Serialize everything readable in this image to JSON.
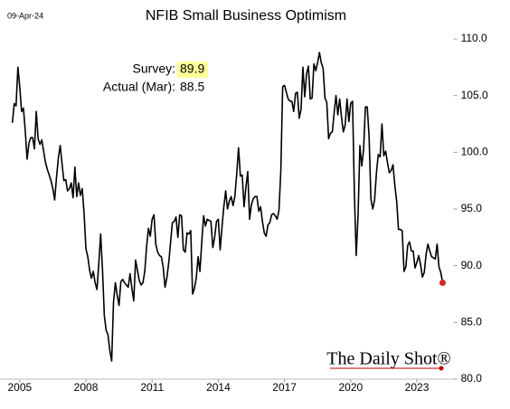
{
  "chart_data": {
    "type": "line",
    "title": "NFIB Small Business Optimism",
    "date": "09-Apr-24",
    "source": "The Daily Shot®",
    "annotations": [
      {
        "label": "Survey:",
        "value": 89.9,
        "highlight": "#ffff99"
      },
      {
        "label": "Actual (Mar):",
        "value": 88.5
      }
    ],
    "xlim": [
      "2004-06",
      "2024-06"
    ],
    "xticks": [
      2005,
      2008,
      2011,
      2014,
      2017,
      2020,
      2023
    ],
    "ylim": [
      80,
      110
    ],
    "yticks": [
      {
        "value": 80,
        "label": "80.0"
      },
      {
        "value": 85,
        "label": "85.0"
      },
      {
        "value": 90,
        "label": "90.0"
      },
      {
        "value": 95,
        "label": "95.0"
      },
      {
        "value": 100,
        "label": "100.0"
      },
      {
        "value": 105,
        "label": "105.0"
      },
      {
        "value": 110,
        "label": "110.0"
      }
    ],
    "grid": false,
    "last_marker_color": "#d62728",
    "x": [
      "2004-09",
      "2004-10",
      "2004-11",
      "2004-12",
      "2005-01",
      "2005-02",
      "2005-03",
      "2005-04",
      "2005-05",
      "2005-06",
      "2005-07",
      "2005-08",
      "2005-09",
      "2005-10",
      "2005-11",
      "2005-12",
      "2006-01",
      "2006-02",
      "2006-03",
      "2006-04",
      "2006-05",
      "2006-06",
      "2006-07",
      "2006-08",
      "2006-09",
      "2006-10",
      "2006-11",
      "2006-12",
      "2007-01",
      "2007-02",
      "2007-03",
      "2007-04",
      "2007-05",
      "2007-06",
      "2007-07",
      "2007-08",
      "2007-09",
      "2007-10",
      "2007-11",
      "2007-12",
      "2008-01",
      "2008-02",
      "2008-03",
      "2008-04",
      "2008-05",
      "2008-06",
      "2008-07",
      "2008-08",
      "2008-09",
      "2008-10",
      "2008-11",
      "2008-12",
      "2009-01",
      "2009-02",
      "2009-03",
      "2009-04",
      "2009-05",
      "2009-06",
      "2009-07",
      "2009-08",
      "2009-09",
      "2009-10",
      "2009-11",
      "2009-12",
      "2010-01",
      "2010-02",
      "2010-03",
      "2010-04",
      "2010-05",
      "2010-06",
      "2010-07",
      "2010-08",
      "2010-09",
      "2010-10",
      "2010-11",
      "2010-12",
      "2011-01",
      "2011-02",
      "2011-03",
      "2011-04",
      "2011-05",
      "2011-06",
      "2011-07",
      "2011-08",
      "2011-09",
      "2011-10",
      "2011-11",
      "2011-12",
      "2012-01",
      "2012-02",
      "2012-03",
      "2012-04",
      "2012-05",
      "2012-06",
      "2012-07",
      "2012-08",
      "2012-09",
      "2012-10",
      "2012-11",
      "2012-12",
      "2013-01",
      "2013-02",
      "2013-03",
      "2013-04",
      "2013-05",
      "2013-06",
      "2013-07",
      "2013-08",
      "2013-09",
      "2013-10",
      "2013-11",
      "2013-12",
      "2014-01",
      "2014-02",
      "2014-03",
      "2014-04",
      "2014-05",
      "2014-06",
      "2014-07",
      "2014-08",
      "2014-09",
      "2014-10",
      "2014-11",
      "2014-12",
      "2015-01",
      "2015-02",
      "2015-03",
      "2015-04",
      "2015-05",
      "2015-06",
      "2015-07",
      "2015-08",
      "2015-09",
      "2015-10",
      "2015-11",
      "2015-12",
      "2016-01",
      "2016-02",
      "2016-03",
      "2016-04",
      "2016-05",
      "2016-06",
      "2016-07",
      "2016-08",
      "2016-09",
      "2016-10",
      "2016-11",
      "2016-12",
      "2017-01",
      "2017-02",
      "2017-03",
      "2017-04",
      "2017-05",
      "2017-06",
      "2017-07",
      "2017-08",
      "2017-09",
      "2017-10",
      "2017-11",
      "2017-12",
      "2018-01",
      "2018-02",
      "2018-03",
      "2018-04",
      "2018-05",
      "2018-06",
      "2018-07",
      "2018-08",
      "2018-09",
      "2018-10",
      "2018-11",
      "2018-12",
      "2019-01",
      "2019-02",
      "2019-03",
      "2019-04",
      "2019-05",
      "2019-06",
      "2019-07",
      "2019-08",
      "2019-09",
      "2019-10",
      "2019-11",
      "2019-12",
      "2020-01",
      "2020-02",
      "2020-03",
      "2020-04",
      "2020-05",
      "2020-06",
      "2020-07",
      "2020-08",
      "2020-09",
      "2020-10",
      "2020-11",
      "2020-12",
      "2021-01",
      "2021-02",
      "2021-03",
      "2021-04",
      "2021-05",
      "2021-06",
      "2021-07",
      "2021-08",
      "2021-09",
      "2021-10",
      "2021-11",
      "2021-12",
      "2022-01",
      "2022-02",
      "2022-03",
      "2022-04",
      "2022-05",
      "2022-06",
      "2022-07",
      "2022-08",
      "2022-09",
      "2022-10",
      "2022-11",
      "2022-12",
      "2023-01",
      "2023-02",
      "2023-03",
      "2023-04",
      "2023-05",
      "2023-06",
      "2023-07",
      "2023-08",
      "2023-09",
      "2023-10",
      "2023-11",
      "2023-12",
      "2024-01",
      "2024-02",
      "2024-03"
    ],
    "series": [
      {
        "name": "NFIB Small Business Optimism",
        "color": "#000000",
        "values": [
          102.6,
          104.3,
          104.1,
          107.5,
          105.8,
          103.6,
          103.9,
          101.9,
          99.4,
          100.8,
          101.3,
          101.3,
          100.3,
          103.6,
          101.2,
          100.7,
          101.1,
          100.1,
          99.1,
          98.5,
          98.0,
          97.5,
          96.8,
          95.8,
          97.8,
          99.5,
          100.6,
          99.0,
          97.5,
          97.6,
          96.6,
          96.8,
          97.3,
          96.0,
          98.7,
          96.1,
          97.3,
          96.2,
          96.8,
          94.6,
          91.5,
          90.8,
          89.6,
          88.9,
          89.5,
          88.5,
          87.9,
          90.2,
          92.8,
          89.7,
          85.6,
          84.3,
          83.9,
          82.5,
          81.6,
          86.8,
          88.5,
          87.4,
          86.5,
          88.6,
          88.8,
          88.5,
          88.3,
          88.1,
          89.3,
          88.0,
          86.9,
          90.5,
          89.6,
          88.7,
          88.3,
          88.5,
          89.5,
          91.7,
          93.3,
          92.6,
          94.1,
          94.5,
          91.9,
          91.2,
          90.9,
          90.8,
          89.9,
          88.1,
          88.9,
          90.2,
          92.0,
          93.8,
          93.9,
          94.3,
          92.5,
          94.5,
          94.4,
          91.4,
          91.2,
          92.9,
          92.8,
          93.1,
          87.5,
          88.0,
          88.9,
          90.8,
          89.5,
          92.1,
          94.4,
          93.5,
          94.1,
          94.0,
          93.9,
          91.6,
          92.5,
          93.9,
          94.1,
          91.4,
          93.4,
          95.2,
          96.6,
          95.0,
          95.7,
          96.1,
          95.3,
          96.1,
          98.1,
          100.4,
          97.9,
          98.0,
          95.2,
          96.9,
          98.3,
          94.1,
          95.4,
          95.9,
          96.1,
          96.1,
          94.8,
          95.2,
          93.9,
          92.9,
          92.6,
          93.6,
          93.8,
          94.5,
          94.6,
          94.4,
          94.1,
          94.9,
          98.4,
          105.8,
          105.9,
          105.3,
          104.7,
          104.5,
          104.5,
          103.6,
          105.2,
          105.3,
          103.0,
          103.8,
          107.5,
          104.9,
          106.9,
          107.6,
          104.7,
          104.8,
          107.8,
          107.2,
          107.9,
          108.8,
          107.9,
          107.4,
          104.8,
          104.4,
          101.2,
          101.7,
          101.8,
          103.5,
          105.0,
          103.3,
          104.7,
          103.1,
          101.8,
          102.4,
          104.7,
          102.7,
          104.3,
          104.5,
          96.4,
          90.9,
          94.4,
          100.6,
          98.8,
          100.2,
          104.0,
          104.0,
          101.4,
          95.9,
          95.0,
          95.8,
          98.2,
          99.8,
          99.6,
          102.5,
          99.7,
          100.1,
          99.1,
          98.2,
          98.4,
          98.9,
          97.1,
          95.7,
          93.2,
          93.2,
          93.1,
          89.5,
          89.9,
          91.8,
          92.1,
          91.3,
          91.3,
          89.8,
          90.3,
          90.9,
          90.1,
          89.0,
          89.4,
          91.0,
          91.9,
          91.3,
          90.8,
          90.7,
          90.6,
          91.9,
          89.9,
          89.4,
          88.5
        ]
      }
    ]
  }
}
